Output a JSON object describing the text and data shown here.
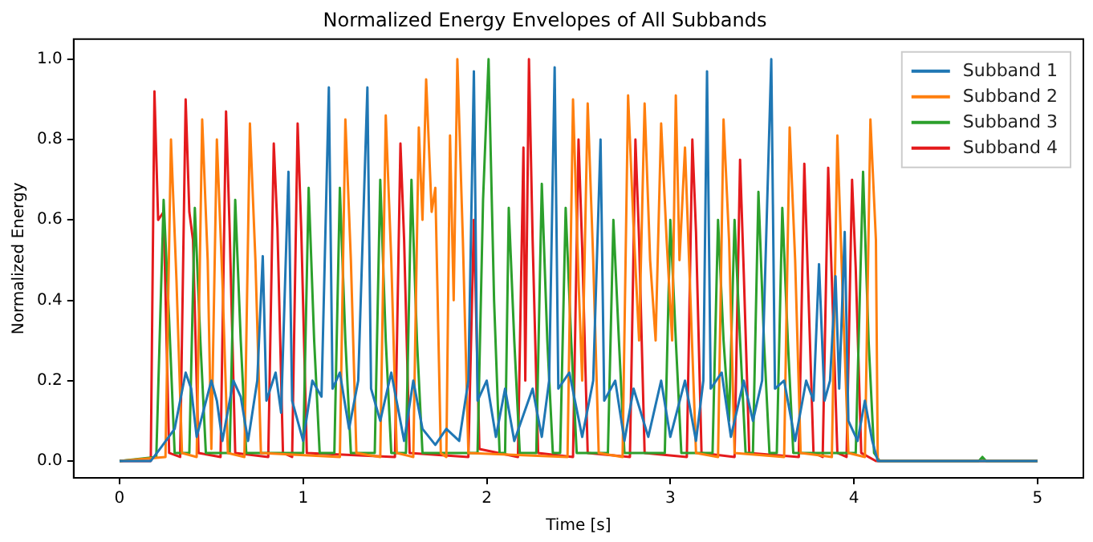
{
  "chart_data": {
    "type": "line",
    "title": "Normalized Energy Envelopes of All Subbands",
    "xlabel": "Time [s]",
    "ylabel": "Normalized Energy",
    "xlim": [
      -0.25,
      5.25
    ],
    "ylim": [
      -0.042,
      1.05
    ],
    "xticks": [
      0,
      1,
      2,
      3,
      4,
      5
    ],
    "yticks": [
      {
        "value": 0,
        "label": "0.0"
      },
      {
        "value": 0.2,
        "label": "0.2"
      },
      {
        "value": 0.4,
        "label": "0.4"
      },
      {
        "value": 0.6,
        "label": "0.6"
      },
      {
        "value": 0.8,
        "label": "0.8"
      },
      {
        "value": 1,
        "label": "1.0"
      }
    ],
    "grid": false,
    "legend": "top right",
    "line_style": "solid",
    "series": [
      {
        "name": "Subband 1",
        "color": "#1f77b4",
        "x": [
          0,
          0.17,
          0.22,
          0.3,
          0.36,
          0.39,
          0.42,
          0.5,
          0.53,
          0.56,
          0.62,
          0.66,
          0.7,
          0.75,
          0.78,
          0.8,
          0.85,
          0.88,
          0.92,
          0.94,
          1.0,
          1.05,
          1.1,
          1.14,
          1.16,
          1.2,
          1.25,
          1.3,
          1.35,
          1.37,
          1.42,
          1.48,
          1.55,
          1.6,
          1.65,
          1.72,
          1.78,
          1.85,
          1.9,
          1.93,
          1.95,
          2.0,
          2.05,
          2.1,
          2.15,
          2.25,
          2.3,
          2.34,
          2.37,
          2.39,
          2.45,
          2.52,
          2.58,
          2.62,
          2.64,
          2.7,
          2.75,
          2.8,
          2.88,
          2.95,
          3.0,
          3.08,
          3.14,
          3.18,
          3.2,
          3.22,
          3.28,
          3.33,
          3.4,
          3.45,
          3.5,
          3.55,
          3.57,
          3.62,
          3.68,
          3.74,
          3.78,
          3.81,
          3.84,
          3.87,
          3.9,
          3.92,
          3.95,
          3.97,
          4.02,
          4.06,
          4.1,
          4.13,
          5
        ],
        "values": [
          0,
          0,
          0.03,
          0.08,
          0.22,
          0.18,
          0.06,
          0.2,
          0.15,
          0.05,
          0.2,
          0.16,
          0.05,
          0.2,
          0.51,
          0.15,
          0.22,
          0.12,
          0.72,
          0.15,
          0.05,
          0.2,
          0.16,
          0.93,
          0.18,
          0.22,
          0.08,
          0.2,
          0.93,
          0.18,
          0.1,
          0.22,
          0.05,
          0.2,
          0.08,
          0.04,
          0.08,
          0.05,
          0.2,
          0.97,
          0.15,
          0.2,
          0.06,
          0.18,
          0.05,
          0.18,
          0.06,
          0.2,
          0.98,
          0.18,
          0.22,
          0.06,
          0.2,
          0.8,
          0.15,
          0.2,
          0.05,
          0.18,
          0.06,
          0.2,
          0.06,
          0.2,
          0.05,
          0.2,
          0.97,
          0.18,
          0.22,
          0.06,
          0.2,
          0.1,
          0.2,
          1.0,
          0.18,
          0.2,
          0.05,
          0.2,
          0.15,
          0.49,
          0.15,
          0.2,
          0.46,
          0.18,
          0.57,
          0.1,
          0.05,
          0.15,
          0.05,
          0,
          0
        ]
      },
      {
        "name": "Subband 2",
        "color": "#ff7f0e",
        "x": [
          0,
          0.25,
          0.28,
          0.31,
          0.34,
          0.42,
          0.45,
          0.48,
          0.5,
          0.53,
          0.56,
          0.59,
          0.68,
          0.71,
          0.74,
          0.77,
          1.2,
          1.23,
          1.26,
          1.29,
          1.42,
          1.45,
          1.48,
          1.51,
          1.6,
          1.63,
          1.65,
          1.67,
          1.7,
          1.72,
          1.75,
          1.78,
          1.8,
          1.82,
          1.84,
          1.87,
          1.9,
          2.44,
          2.47,
          2.5,
          2.52,
          2.55,
          2.58,
          2.61,
          2.74,
          2.77,
          2.8,
          2.83,
          2.86,
          2.89,
          2.92,
          2.95,
          2.98,
          3.01,
          3.03,
          3.05,
          3.08,
          3.11,
          3.14,
          3.26,
          3.29,
          3.32,
          3.35,
          3.62,
          3.65,
          3.68,
          3.71,
          3.88,
          3.91,
          3.94,
          3.97,
          4.06,
          4.09,
          4.12,
          4.13,
          5
        ],
        "values": [
          0,
          0.01,
          0.8,
          0.45,
          0.02,
          0.01,
          0.85,
          0.5,
          0.03,
          0.8,
          0.45,
          0.02,
          0.01,
          0.84,
          0.5,
          0.02,
          0.01,
          0.85,
          0.5,
          0.02,
          0.01,
          0.86,
          0.5,
          0.02,
          0.01,
          0.83,
          0.6,
          0.95,
          0.62,
          0.68,
          0.02,
          0.01,
          0.81,
          0.4,
          1.0,
          0.55,
          0.02,
          0.01,
          0.9,
          0.45,
          0.2,
          0.89,
          0.5,
          0.02,
          0.01,
          0.91,
          0.58,
          0.3,
          0.89,
          0.5,
          0.3,
          0.84,
          0.55,
          0.3,
          0.91,
          0.5,
          0.78,
          0.4,
          0.02,
          0.01,
          0.85,
          0.55,
          0.02,
          0.01,
          0.83,
          0.5,
          0.02,
          0.01,
          0.81,
          0.4,
          0.02,
          0.01,
          0.85,
          0.55,
          0,
          0
        ]
      },
      {
        "name": "Subband 3",
        "color": "#2ca02c",
        "x": [
          0,
          0.2,
          0.24,
          0.27,
          0.3,
          0.38,
          0.41,
          0.44,
          0.47,
          0.6,
          0.63,
          0.66,
          0.69,
          1.0,
          1.03,
          1.06,
          1.09,
          1.17,
          1.2,
          1.23,
          1.26,
          1.39,
          1.42,
          1.45,
          1.48,
          1.56,
          1.59,
          1.62,
          1.65,
          1.95,
          1.98,
          2.01,
          2.04,
          2.07,
          2.1,
          2.12,
          2.15,
          2.18,
          2.27,
          2.3,
          2.33,
          2.36,
          2.4,
          2.43,
          2.46,
          2.49,
          2.66,
          2.69,
          2.72,
          2.75,
          2.97,
          3.0,
          3.03,
          3.06,
          3.23,
          3.26,
          3.29,
          3.32,
          3.35,
          3.38,
          3.41,
          3.45,
          3.48,
          3.51,
          3.54,
          3.58,
          3.61,
          3.64,
          3.67,
          4.01,
          4.05,
          4.08,
          4.11,
          4.14,
          4.68,
          4.7,
          4.72,
          5
        ],
        "values": [
          0,
          0.01,
          0.65,
          0.35,
          0.02,
          0.02,
          0.63,
          0.3,
          0.02,
          0.02,
          0.65,
          0.3,
          0.02,
          0.02,
          0.68,
          0.3,
          0.02,
          0.02,
          0.68,
          0.3,
          0.02,
          0.02,
          0.7,
          0.3,
          0.02,
          0.02,
          0.7,
          0.3,
          0.02,
          0.02,
          0.65,
          1.0,
          0.4,
          0.02,
          0.02,
          0.63,
          0.3,
          0.02,
          0.02,
          0.69,
          0.3,
          0.02,
          0.02,
          0.63,
          0.3,
          0.02,
          0.02,
          0.6,
          0.3,
          0.02,
          0.02,
          0.6,
          0.3,
          0.02,
          0.02,
          0.6,
          0.3,
          0.1,
          0.6,
          0.3,
          0.02,
          0.02,
          0.67,
          0.3,
          0.02,
          0.02,
          0.63,
          0.3,
          0.02,
          0.02,
          0.72,
          0.3,
          0.02,
          0,
          0,
          0.01,
          0,
          0
        ]
      },
      {
        "name": "Subband 4",
        "color": "#e41a1c",
        "x": [
          0,
          0.17,
          0.19,
          0.21,
          0.24,
          0.27,
          0.33,
          0.36,
          0.38,
          0.4,
          0.43,
          0.55,
          0.58,
          0.6,
          0.63,
          0.81,
          0.84,
          0.86,
          0.89,
          0.94,
          0.97,
          0.99,
          1.02,
          1.5,
          1.53,
          1.55,
          1.58,
          1.9,
          1.93,
          1.96,
          2.17,
          2.2,
          2.21,
          2.23,
          2.25,
          2.28,
          2.47,
          2.5,
          2.52,
          2.55,
          2.78,
          2.81,
          2.83,
          2.86,
          3.09,
          3.12,
          3.14,
          3.17,
          3.35,
          3.38,
          3.4,
          3.43,
          3.7,
          3.73,
          3.75,
          3.78,
          3.83,
          3.86,
          3.88,
          3.91,
          3.96,
          3.99,
          4.01,
          4.04,
          4.12,
          5
        ],
        "values": [
          0,
          0,
          0.92,
          0.6,
          0.62,
          0.02,
          0.01,
          0.9,
          0.62,
          0.55,
          0.02,
          0.01,
          0.87,
          0.57,
          0.02,
          0.01,
          0.79,
          0.58,
          0.02,
          0.01,
          0.84,
          0.57,
          0.02,
          0.01,
          0.79,
          0.55,
          0.02,
          0.01,
          0.6,
          0.03,
          0.01,
          0.78,
          0.2,
          1.0,
          0.55,
          0.02,
          0.01,
          0.8,
          0.53,
          0.02,
          0.01,
          0.8,
          0.55,
          0.02,
          0.01,
          0.8,
          0.57,
          0.02,
          0.01,
          0.75,
          0.47,
          0.02,
          0.01,
          0.74,
          0.45,
          0.02,
          0.01,
          0.73,
          0.45,
          0.02,
          0.01,
          0.7,
          0.48,
          0.02,
          0,
          0
        ]
      }
    ]
  }
}
